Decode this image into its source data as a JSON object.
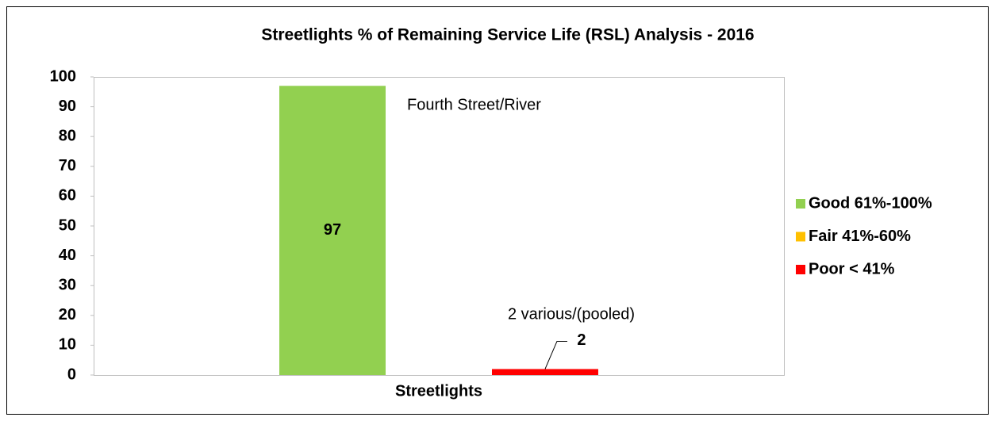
{
  "chart_data": {
    "type": "bar",
    "title": "Streetlights % of Remaining Service Life (RSL) Analysis - 2016",
    "categories": [
      "Streetlights"
    ],
    "series": [
      {
        "name": "Good 61%-100%",
        "color": "#92d050",
        "values": [
          97
        ]
      },
      {
        "name": "Fair 41%-60%",
        "color": "#ffc000",
        "values": [
          null
        ]
      },
      {
        "name": "Poor < 41%",
        "color": "#ff0000",
        "values": [
          2
        ]
      }
    ],
    "annotations": [
      "Fourth Street/River",
      "2 various/(pooled)"
    ],
    "ylim": [
      0,
      100
    ],
    "yticks": [
      0,
      10,
      20,
      30,
      40,
      50,
      60,
      70,
      80,
      90,
      100
    ],
    "legend": "right"
  }
}
